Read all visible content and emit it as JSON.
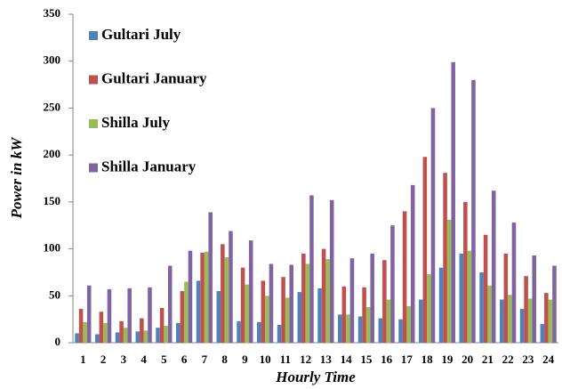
{
  "chart_data": {
    "type": "bar",
    "x_label": "Hourly Time",
    "y_label": "Power in kW",
    "categories": [
      "1",
      "2",
      "3",
      "4",
      "5",
      "6",
      "7",
      "8",
      "9",
      "10",
      "11",
      "12",
      "13",
      "14",
      "15",
      "16",
      "17",
      "18",
      "19",
      "20",
      "21",
      "22",
      "23",
      "24"
    ],
    "series": [
      {
        "name": "Gultari July",
        "color": "#4f81bd",
        "values": [
          10,
          9,
          11,
          12,
          16,
          21,
          66,
          55,
          23,
          22,
          19,
          54,
          58,
          30,
          28,
          26,
          25,
          46,
          80,
          95,
          75,
          46,
          36,
          20
        ]
      },
      {
        "name": "Gultari January",
        "color": "#c0504d",
        "values": [
          36,
          33,
          23,
          26,
          37,
          55,
          96,
          105,
          80,
          66,
          70,
          95,
          100,
          60,
          59,
          88,
          140,
          198,
          181,
          150,
          115,
          95,
          71,
          53
        ]
      },
      {
        "name": "Shilla July",
        "color": "#9bbb59",
        "values": [
          22,
          21,
          16,
          13,
          18,
          65,
          97,
          91,
          62,
          50,
          48,
          84,
          89,
          30,
          38,
          46,
          39,
          73,
          131,
          98,
          61,
          51,
          47,
          46
        ]
      },
      {
        "name": "Shilla January",
        "color": "#8064a2",
        "values": [
          61,
          57,
          58,
          59,
          82,
          98,
          139,
          119,
          109,
          84,
          83,
          157,
          152,
          90,
          95,
          125,
          168,
          250,
          299,
          280,
          162,
          128,
          93,
          82
        ]
      }
    ],
    "ylim": [
      0,
      350
    ],
    "yticks": [
      0,
      50,
      100,
      150,
      200,
      250,
      300,
      350
    ],
    "legend": "upper-left"
  }
}
